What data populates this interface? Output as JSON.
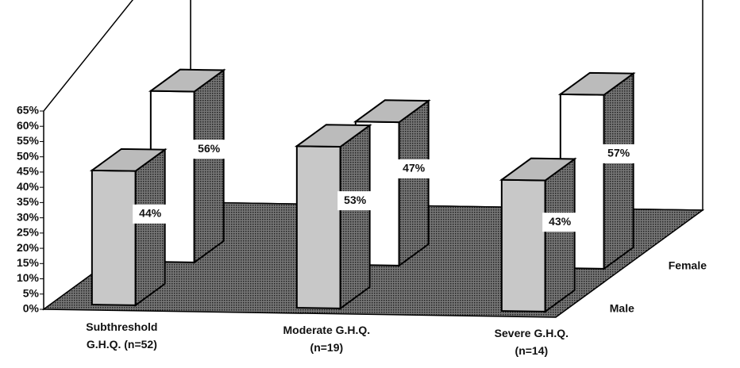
{
  "chart_data": {
    "type": "bar3d",
    "categories": [
      [
        "Subthreshold",
        "G.H.Q. (n=52)"
      ],
      [
        "Moderate G.H.Q.",
        "(n=19)"
      ],
      [
        "Severe G.H.Q.",
        "(n=14)"
      ]
    ],
    "series": [
      {
        "name": "Male",
        "color": "#c8c8c8",
        "values": [
          44,
          53,
          43
        ],
        "value_labels": [
          "44%",
          "53%",
          "43%"
        ]
      },
      {
        "name": "Female",
        "color": "#ffffff",
        "values": [
          56,
          47,
          57
        ],
        "value_labels": [
          "56%",
          "47%",
          "57%"
        ]
      }
    ],
    "ylim": [
      0,
      65
    ],
    "yticks": [
      {
        "value": 0,
        "label": "0%"
      },
      {
        "value": 5,
        "label": "5%"
      },
      {
        "value": 10,
        "label": "10%"
      },
      {
        "value": 15,
        "label": "15%"
      },
      {
        "value": 20,
        "label": "20%"
      },
      {
        "value": 25,
        "label": "25%"
      },
      {
        "value": 30,
        "label": "30%"
      },
      {
        "value": 35,
        "label": "35%"
      },
      {
        "value": 40,
        "label": "40%"
      },
      {
        "value": 45,
        "label": "45%"
      },
      {
        "value": 50,
        "label": "50%"
      },
      {
        "value": 55,
        "label": "55%"
      },
      {
        "value": 60,
        "label": "60%"
      },
      {
        "value": 65,
        "label": "65%"
      }
    ]
  }
}
